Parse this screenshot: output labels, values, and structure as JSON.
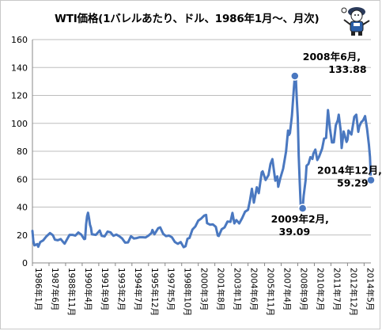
{
  "chart_data": {
    "type": "line",
    "title": "WTI価格(1バレルあたり、ドル、1986年1月～、月次)",
    "xlabel": "",
    "ylabel": "",
    "ylim": [
      0,
      160
    ],
    "yticks": [
      0,
      20,
      40,
      60,
      80,
      100,
      120,
      140,
      160
    ],
    "grid": true,
    "legend": "none",
    "line_color": "#4a78c0",
    "x_range": [
      "1986-01",
      "2014-12"
    ],
    "x_tick_labels": [
      "1986年1月",
      "1987年6月",
      "1988年11月",
      "1990年4月",
      "1991年9月",
      "1993年2月",
      "1994年7月",
      "1995年12月",
      "1997年5月",
      "1998年10月",
      "2000年3月",
      "2001年8月",
      "2003年1月",
      "2004年6月",
      "2005年11月",
      "2007年4月",
      "2008年9月",
      "2010年2月",
      "2011年7月",
      "2012年12月",
      "2014年5月"
    ],
    "series": [
      {
        "points": [
          [
            "1986-01",
            22.9
          ],
          [
            "1986-02",
            15.5
          ],
          [
            "1986-03",
            12.6
          ],
          [
            "1986-04",
            12.8
          ],
          [
            "1986-06",
            13.5
          ],
          [
            "1986-07",
            11.6
          ],
          [
            "1986-09",
            14.9
          ],
          [
            "1986-12",
            16.1
          ],
          [
            "1987-03",
            18.8
          ],
          [
            "1987-07",
            21.4
          ],
          [
            "1987-10",
            19.8
          ],
          [
            "1987-12",
            16.7
          ],
          [
            "1988-03",
            16.2
          ],
          [
            "1988-06",
            17.1
          ],
          [
            "1988-09",
            14.5
          ],
          [
            "1988-10",
            13.8
          ],
          [
            "1988-12",
            16.3
          ],
          [
            "1989-03",
            20.1
          ],
          [
            "1989-06",
            20.1
          ],
          [
            "1989-09",
            19.6
          ],
          [
            "1989-12",
            21.8
          ],
          [
            "1990-03",
            20.3
          ],
          [
            "1990-06",
            17.1
          ],
          [
            "1990-07",
            17.2
          ],
          [
            "1990-08",
            27.2
          ],
          [
            "1990-09",
            33.5
          ],
          [
            "1990-10",
            35.9
          ],
          [
            "1990-11",
            32.3
          ],
          [
            "1990-12",
            27.3
          ],
          [
            "1991-01",
            25.2
          ],
          [
            "1991-02",
            20.5
          ],
          [
            "1991-06",
            20.1
          ],
          [
            "1991-10",
            23.2
          ],
          [
            "1991-12",
            19.4
          ],
          [
            "1992-03",
            19.0
          ],
          [
            "1992-06",
            22.4
          ],
          [
            "1992-09",
            21.9
          ],
          [
            "1992-12",
            19.4
          ],
          [
            "1993-03",
            20.3
          ],
          [
            "1993-06",
            19.1
          ],
          [
            "1993-09",
            17.5
          ],
          [
            "1993-12",
            14.5
          ],
          [
            "1994-03",
            14.7
          ],
          [
            "1994-06",
            19.1
          ],
          [
            "1994-09",
            17.5
          ],
          [
            "1994-12",
            17.8
          ],
          [
            "1995-03",
            18.4
          ],
          [
            "1995-06",
            18.4
          ],
          [
            "1995-09",
            18.2
          ],
          [
            "1995-12",
            19.6
          ],
          [
            "1996-03",
            21.4
          ],
          [
            "1996-04",
            23.6
          ],
          [
            "1996-06",
            20.5
          ],
          [
            "1996-10",
            24.9
          ],
          [
            "1996-12",
            25.4
          ],
          [
            "1997-03",
            20.8
          ],
          [
            "1997-06",
            19.2
          ],
          [
            "1997-09",
            19.6
          ],
          [
            "1997-12",
            18.3
          ],
          [
            "1998-03",
            15.0
          ],
          [
            "1998-06",
            13.7
          ],
          [
            "1998-09",
            14.9
          ],
          [
            "1998-12",
            11.3
          ],
          [
            "1999-02",
            12.0
          ],
          [
            "1999-04",
            17.3
          ],
          [
            "1999-06",
            17.9
          ],
          [
            "1999-09",
            23.9
          ],
          [
            "1999-12",
            26.1
          ],
          [
            "2000-03",
            30.3
          ],
          [
            "2000-06",
            31.8
          ],
          [
            "2000-09",
            33.9
          ],
          [
            "2000-11",
            34.4
          ],
          [
            "2000-12",
            28.5
          ],
          [
            "2001-03",
            27.4
          ],
          [
            "2001-06",
            27.6
          ],
          [
            "2001-09",
            25.8
          ],
          [
            "2001-11",
            19.6
          ],
          [
            "2001-12",
            19.3
          ],
          [
            "2002-03",
            24.1
          ],
          [
            "2002-06",
            25.5
          ],
          [
            "2002-09",
            29.7
          ],
          [
            "2002-12",
            29.4
          ],
          [
            "2003-02",
            35.8
          ],
          [
            "2003-04",
            28.3
          ],
          [
            "2003-06",
            30.7
          ],
          [
            "2003-09",
            28.3
          ],
          [
            "2003-12",
            32.1
          ],
          [
            "2004-03",
            36.7
          ],
          [
            "2004-06",
            38.0
          ],
          [
            "2004-08",
            44.9
          ],
          [
            "2004-10",
            53.1
          ],
          [
            "2004-12",
            43.2
          ],
          [
            "2005-03",
            54.2
          ],
          [
            "2005-05",
            50.0
          ],
          [
            "2005-08",
            64.9
          ],
          [
            "2005-09",
            65.6
          ],
          [
            "2005-12",
            59.4
          ],
          [
            "2006-03",
            62.9
          ],
          [
            "2006-05",
            70.9
          ],
          [
            "2006-07",
            74.4
          ],
          [
            "2006-10",
            58.9
          ],
          [
            "2006-12",
            62.0
          ],
          [
            "2007-01",
            54.5
          ],
          [
            "2007-03",
            60.4
          ],
          [
            "2007-06",
            67.5
          ],
          [
            "2007-09",
            79.9
          ],
          [
            "2007-11",
            94.8
          ],
          [
            "2007-12",
            91.7
          ],
          [
            "2008-01",
            93.0
          ],
          [
            "2008-03",
            105.5
          ],
          [
            "2008-05",
            125.4
          ],
          [
            "2008-06",
            133.88
          ],
          [
            "2008-07",
            133.4
          ],
          [
            "2008-08",
            116.7
          ],
          [
            "2008-09",
            104.1
          ],
          [
            "2008-10",
            76.6
          ],
          [
            "2008-11",
            57.3
          ],
          [
            "2008-12",
            41.1
          ],
          [
            "2009-01",
            41.7
          ],
          [
            "2009-02",
            39.09
          ],
          [
            "2009-03",
            47.9
          ],
          [
            "2009-05",
            59.1
          ],
          [
            "2009-06",
            69.6
          ],
          [
            "2009-08",
            71.0
          ],
          [
            "2009-10",
            75.8
          ],
          [
            "2009-12",
            74.5
          ],
          [
            "2010-01",
            78.3
          ],
          [
            "2010-03",
            81.2
          ],
          [
            "2010-05",
            73.7
          ],
          [
            "2010-07",
            76.3
          ],
          [
            "2010-10",
            81.9
          ],
          [
            "2010-12",
            89.1
          ],
          [
            "2011-02",
            89.6
          ],
          [
            "2011-04",
            109.5
          ],
          [
            "2011-06",
            96.3
          ],
          [
            "2011-08",
            86.3
          ],
          [
            "2011-10",
            86.4
          ],
          [
            "2011-12",
            98.6
          ],
          [
            "2012-02",
            102.2
          ],
          [
            "2012-03",
            106.2
          ],
          [
            "2012-05",
            94.7
          ],
          [
            "2012-06",
            82.3
          ],
          [
            "2012-08",
            94.2
          ],
          [
            "2012-11",
            86.7
          ],
          [
            "2012-12",
            88.3
          ],
          [
            "2013-01",
            94.8
          ],
          [
            "2013-04",
            92.0
          ],
          [
            "2013-07",
            104.7
          ],
          [
            "2013-09",
            106.2
          ],
          [
            "2013-11",
            93.9
          ],
          [
            "2013-12",
            97.6
          ],
          [
            "2014-02",
            100.8
          ],
          [
            "2014-04",
            102.1
          ],
          [
            "2014-06",
            105.2
          ],
          [
            "2014-08",
            96.1
          ],
          [
            "2014-10",
            84.4
          ],
          [
            "2014-11",
            75.8
          ],
          [
            "2014-12",
            59.29
          ]
        ]
      }
    ],
    "annotations": [
      {
        "date": "2008-06",
        "value": 133.88,
        "line1": "2008年6月,",
        "line2": "133.88"
      },
      {
        "date": "2009-02",
        "value": 39.09,
        "line1": "2009年2月,",
        "line2": "39.09"
      },
      {
        "date": "2014-12",
        "value": 59.29,
        "line1": "2014年12月,",
        "line2": "59.29"
      }
    ]
  }
}
